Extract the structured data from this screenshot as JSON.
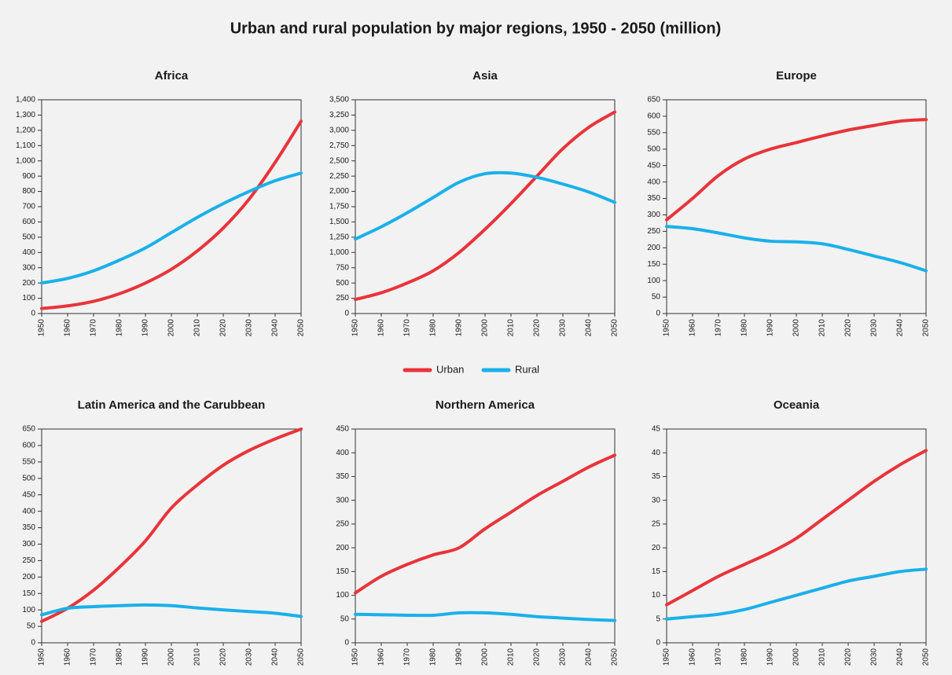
{
  "title": "Urban and rural population by major regions, 1950 - 2050 (million)",
  "chart_data": [
    {
      "type": "line",
      "title": "Africa",
      "x": [
        1950,
        1960,
        1970,
        1980,
        1990,
        2000,
        2010,
        2020,
        2030,
        2040,
        2050
      ],
      "xlim": [
        1950,
        2050
      ],
      "xticks": [
        1950,
        1960,
        1970,
        1980,
        1990,
        2000,
        2010,
        2020,
        2030,
        2040,
        2050
      ],
      "ylim": [
        0,
        1400
      ],
      "yticks": [
        0,
        100,
        200,
        300,
        400,
        500,
        600,
        700,
        800,
        900,
        {
          "value": 1000,
          "label": "1,000"
        },
        {
          "value": 1100,
          "label": "1,100"
        },
        {
          "value": 1200,
          "label": "1,200"
        },
        {
          "value": 1300,
          "label": "1,300"
        },
        {
          "value": 1400,
          "label": "1,400"
        }
      ],
      "series": [
        {
          "name": "Urban",
          "color": "#e8343a",
          "values": [
            33,
            50,
            80,
            130,
            200,
            290,
            410,
            560,
            750,
            990,
            1260
          ]
        },
        {
          "name": "Rural",
          "color": "#1ab0ea",
          "values": [
            200,
            230,
            280,
            350,
            430,
            530,
            630,
            720,
            800,
            870,
            920
          ]
        }
      ]
    },
    {
      "type": "line",
      "title": "Asia",
      "x": [
        1950,
        1960,
        1970,
        1980,
        1990,
        2000,
        2010,
        2020,
        2030,
        2040,
        2050
      ],
      "xlim": [
        1950,
        2050
      ],
      "xticks": [
        1950,
        1960,
        1970,
        1980,
        1990,
        2000,
        2010,
        2020,
        2030,
        2040,
        2050
      ],
      "ylim": [
        0,
        3500
      ],
      "yticks": [
        0,
        250,
        500,
        750,
        {
          "value": 1000,
          "label": "1,000"
        },
        {
          "value": 1250,
          "label": "1,250"
        },
        {
          "value": 1500,
          "label": "1,500"
        },
        {
          "value": 1750,
          "label": "1,750"
        },
        {
          "value": 2000,
          "label": "2,000"
        },
        {
          "value": 2250,
          "label": "2,250"
        },
        {
          "value": 2500,
          "label": "2,500"
        },
        {
          "value": 2750,
          "label": "2,750"
        },
        {
          "value": 3000,
          "label": "3,000"
        },
        {
          "value": 3250,
          "label": "3,250"
        },
        {
          "value": 3500,
          "label": "3,500"
        }
      ],
      "series": [
        {
          "name": "Urban",
          "color": "#e8343a",
          "values": [
            230,
            340,
            500,
            700,
            1000,
            1380,
            1800,
            2250,
            2700,
            3050,
            3300
          ]
        },
        {
          "name": "Rural",
          "color": "#1ab0ea",
          "values": [
            1220,
            1420,
            1650,
            1900,
            2150,
            2290,
            2300,
            2230,
            2120,
            1990,
            1820
          ]
        }
      ]
    },
    {
      "type": "line",
      "title": "Europe",
      "x": [
        1950,
        1960,
        1970,
        1980,
        1990,
        2000,
        2010,
        2020,
        2030,
        2040,
        2050
      ],
      "xlim": [
        1950,
        2050
      ],
      "xticks": [
        1950,
        1960,
        1970,
        1980,
        1990,
        2000,
        2010,
        2020,
        2030,
        2040,
        2050
      ],
      "ylim": [
        0,
        650
      ],
      "yticks": [
        0,
        50,
        100,
        150,
        200,
        250,
        300,
        350,
        400,
        450,
        500,
        550,
        600,
        650
      ],
      "series": [
        {
          "name": "Urban",
          "color": "#e8343a",
          "values": [
            285,
            350,
            420,
            470,
            500,
            520,
            540,
            558,
            572,
            585,
            590
          ]
        },
        {
          "name": "Rural",
          "color": "#1ab0ea",
          "values": [
            265,
            258,
            245,
            230,
            220,
            218,
            212,
            195,
            175,
            155,
            130
          ]
        }
      ]
    },
    {
      "type": "line",
      "title": "Latin America and the Carubbean",
      "x": [
        1950,
        1960,
        1970,
        1980,
        1990,
        2000,
        2010,
        2020,
        2030,
        2040,
        2050
      ],
      "xlim": [
        1950,
        2050
      ],
      "xticks": [
        1950,
        1960,
        1970,
        1980,
        1990,
        2000,
        2010,
        2020,
        2030,
        2040,
        2050
      ],
      "ylim": [
        0,
        650
      ],
      "yticks": [
        0,
        50,
        100,
        150,
        200,
        250,
        300,
        350,
        400,
        450,
        500,
        550,
        600,
        650
      ],
      "series": [
        {
          "name": "Urban",
          "color": "#e8343a",
          "values": [
            65,
            105,
            160,
            230,
            310,
            410,
            480,
            540,
            585,
            620,
            650
          ]
        },
        {
          "name": "Rural",
          "color": "#1ab0ea",
          "values": [
            85,
            105,
            110,
            113,
            115,
            113,
            106,
            100,
            95,
            90,
            80
          ]
        }
      ]
    },
    {
      "type": "line",
      "title": "Northern America",
      "x": [
        1950,
        1960,
        1970,
        1980,
        1990,
        2000,
        2010,
        2020,
        2030,
        2040,
        2050
      ],
      "xlim": [
        1950,
        2050
      ],
      "xticks": [
        1950,
        1960,
        1970,
        1980,
        1990,
        2000,
        2010,
        2020,
        2030,
        2040,
        2050
      ],
      "ylim": [
        0,
        450
      ],
      "yticks": [
        0,
        50,
        100,
        150,
        200,
        250,
        300,
        350,
        400,
        450
      ],
      "series": [
        {
          "name": "Urban",
          "color": "#e8343a",
          "values": [
            105,
            140,
            165,
            185,
            200,
            240,
            275,
            310,
            340,
            370,
            395
          ]
        },
        {
          "name": "Rural",
          "color": "#1ab0ea",
          "values": [
            60,
            59,
            58,
            58,
            63,
            63,
            60,
            55,
            52,
            49,
            47
          ]
        }
      ]
    },
    {
      "type": "line",
      "title": "Oceania",
      "x": [
        1950,
        1960,
        1970,
        1980,
        1990,
        2000,
        2010,
        2020,
        2030,
        2040,
        2050
      ],
      "xlim": [
        1950,
        2050
      ],
      "xticks": [
        1950,
        1960,
        1970,
        1980,
        1990,
        2000,
        2010,
        2020,
        2030,
        2040,
        2050
      ],
      "ylim": [
        0,
        45
      ],
      "yticks": [
        0,
        5,
        10,
        15,
        20,
        25,
        30,
        35,
        40,
        45
      ],
      "series": [
        {
          "name": "Urban",
          "color": "#e8343a",
          "values": [
            8,
            11,
            14,
            16.5,
            19,
            22,
            26,
            30,
            34,
            37.5,
            40.5
          ]
        },
        {
          "name": "Rural",
          "color": "#1ab0ea",
          "values": [
            5,
            5.5,
            6,
            7,
            8.5,
            10,
            11.5,
            13,
            14,
            15,
            15.5
          ]
        }
      ]
    }
  ]
}
